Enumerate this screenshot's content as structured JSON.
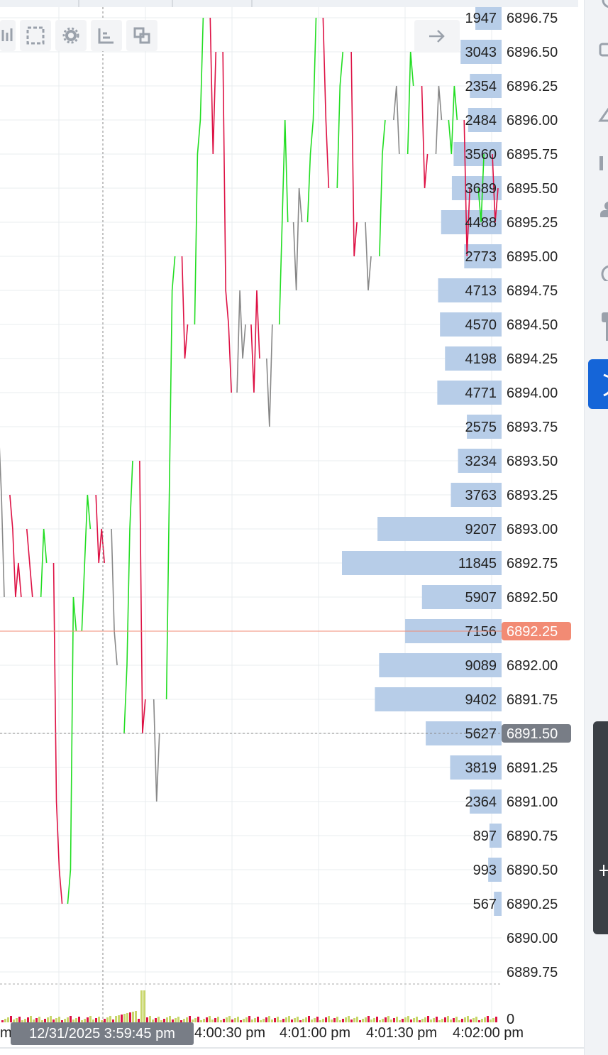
{
  "toolbar": {
    "icons": [
      "chart-type-icon",
      "select-region-icon",
      "settings-icon",
      "indicators-icon",
      "layout-icon"
    ],
    "arrow_icon": "arrow-right-icon"
  },
  "crosshair": {
    "time_label": "12/31/2025 3:59:45 pm",
    "price_label": "6891.50"
  },
  "current_price": {
    "label": "6892.25",
    "color": "#f28b74"
  },
  "right_rail": {
    "icons": [
      "clock-icon",
      "message-icon",
      "alert-icon",
      "person-icon",
      "circle-icon",
      "gift-icon"
    ],
    "active_icon": "shield-icon",
    "bottom_panel_icon": "plus-icon"
  },
  "colors": {
    "up": "#22dd22",
    "down": "#dd1144",
    "neutral": "#888888",
    "profile_bar": "#b7cde8",
    "grid": "#e9ecef"
  },
  "chart_data": {
    "type": "line",
    "title": "",
    "tick_size": 0.25,
    "y_axis_labels": [
      "6896.75",
      "6896.50",
      "6896.25",
      "6896.00",
      "6895.75",
      "6895.50",
      "6895.25",
      "6895.00",
      "6894.75",
      "6894.50",
      "6894.25",
      "6894.00",
      "6893.75",
      "6893.50",
      "6893.25",
      "6893.00",
      "6892.75",
      "6892.50",
      "6892.25",
      "6892.00",
      "6891.75",
      "6891.50",
      "6891.25",
      "6891.00",
      "6890.75",
      "6890.50",
      "6890.25",
      "6890.00",
      "6889.75"
    ],
    "ylim": [
      6889.75,
      6896.75
    ],
    "x_axis_labels": [
      "m",
      "4:00:30 pm",
      "4:01:00 pm",
      "4:01:30 pm",
      "4:02:00 pm"
    ],
    "volume_axis_label": "0",
    "volume_profile": {
      "prices": [
        6896.75,
        6896.5,
        6896.25,
        6896.0,
        6895.75,
        6895.5,
        6895.25,
        6895.0,
        6894.75,
        6894.5,
        6894.25,
        6894.0,
        6893.75,
        6893.5,
        6893.25,
        6893.0,
        6892.75,
        6892.5,
        6892.25,
        6892.0,
        6891.75,
        6891.5,
        6891.25,
        6891.0,
        6890.75,
        6890.5,
        6890.25
      ],
      "volumes": [
        1947,
        3043,
        2354,
        2484,
        3560,
        3689,
        4488,
        2773,
        4713,
        4570,
        4198,
        4771,
        2575,
        3234,
        3763,
        9207,
        11845,
        5907,
        7156,
        9089,
        9402,
        5627,
        3819,
        2364,
        897,
        993,
        567
      ]
    },
    "price_series": [
      {
        "color": "neutral",
        "path": [
          6893.75,
          6893.25,
          6892.5
        ]
      },
      {
        "color": "down",
        "path": [
          6893.25,
          6893.0,
          6892.5,
          6892.75,
          6892.5
        ]
      },
      {
        "color": "down",
        "path": [
          6893.0,
          6892.75,
          6892.5
        ]
      },
      {
        "color": "up",
        "path": [
          6892.5,
          6893.0,
          6892.75
        ]
      },
      {
        "color": "down",
        "path": [
          6892.75,
          6891.0,
          6890.5,
          6890.25
        ]
      },
      {
        "color": "up",
        "path": [
          6890.25,
          6890.5,
          6892.5,
          6892.25
        ]
      },
      {
        "color": "up",
        "path": [
          6892.25,
          6892.75,
          6893.25,
          6893.0
        ]
      },
      {
        "color": "down",
        "path": [
          6893.25,
          6892.75,
          6893.0,
          6892.75
        ]
      },
      {
        "color": "neutral",
        "path": [
          6893.0,
          6892.25,
          6892.0
        ]
      },
      {
        "color": "up",
        "path": [
          6891.5,
          6892.0,
          6893.0,
          6893.5
        ]
      },
      {
        "color": "down",
        "path": [
          6893.5,
          6891.5,
          6891.75
        ]
      },
      {
        "color": "neutral",
        "path": [
          6891.75,
          6891.0,
          6891.5
        ]
      },
      {
        "color": "up",
        "path": [
          6891.75,
          6893.25,
          6894.75,
          6895.0
        ]
      },
      {
        "color": "down",
        "path": [
          6895.0,
          6894.25,
          6894.5
        ]
      },
      {
        "color": "up",
        "path": [
          6894.5,
          6895.75,
          6896.0,
          6896.75
        ]
      },
      {
        "color": "down",
        "path": [
          6896.75,
          6895.75,
          6896.5
        ]
      },
      {
        "color": "down",
        "path": [
          6896.5,
          6894.75,
          6894.5,
          6894.0
        ]
      },
      {
        "color": "neutral",
        "path": [
          6894.0,
          6894.75,
          6894.25,
          6894.5
        ]
      },
      {
        "color": "down",
        "path": [
          6894.5,
          6894.0,
          6894.75,
          6894.25
        ]
      },
      {
        "color": "neutral",
        "path": [
          6894.25,
          6893.75,
          6894.5
        ]
      },
      {
        "color": "up",
        "path": [
          6894.5,
          6895.25,
          6896.0,
          6895.25
        ]
      },
      {
        "color": "neutral",
        "path": [
          6895.25,
          6894.75,
          6895.5,
          6895.25
        ]
      },
      {
        "color": "up",
        "path": [
          6895.25,
          6895.75,
          6896.0,
          6896.75
        ]
      },
      {
        "color": "down",
        "path": [
          6896.75,
          6896.0,
          6895.5
        ]
      },
      {
        "color": "up",
        "path": [
          6895.5,
          6896.25,
          6896.5
        ]
      },
      {
        "color": "down",
        "path": [
          6896.5,
          6895.0,
          6895.25
        ]
      },
      {
        "color": "neutral",
        "path": [
          6895.25,
          6894.75,
          6895.0
        ]
      },
      {
        "color": "up",
        "path": [
          6895.0,
          6895.75,
          6896.0
        ]
      },
      {
        "color": "neutral",
        "path": [
          6896.0,
          6896.25,
          6895.75
        ]
      },
      {
        "color": "up",
        "path": [
          6895.75,
          6896.5,
          6896.25
        ]
      },
      {
        "color": "down",
        "path": [
          6896.25,
          6895.5,
          6895.75
        ]
      },
      {
        "color": "neutral",
        "path": [
          6895.75,
          6896.25,
          6896.0
        ]
      },
      {
        "color": "up",
        "path": [
          6896.0,
          6895.75,
          6896.25,
          6896.0
        ]
      },
      {
        "color": "down",
        "path": [
          6896.0,
          6895.0,
          6895.5
        ]
      },
      {
        "color": "up",
        "path": [
          6895.5,
          6895.25,
          6895.75
        ]
      },
      {
        "color": "down",
        "path": [
          6895.75,
          6895.25,
          6895.5
        ]
      }
    ]
  }
}
